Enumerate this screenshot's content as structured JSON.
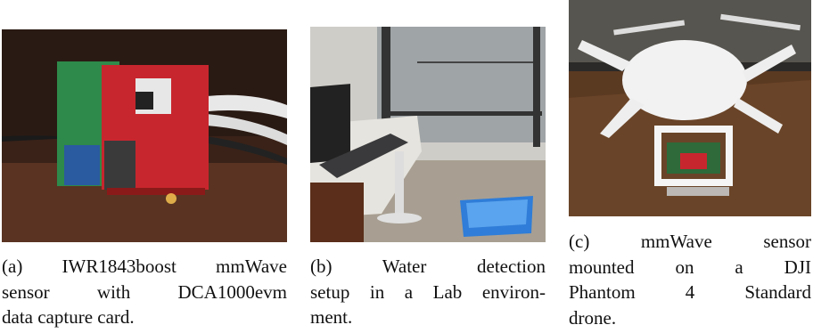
{
  "figures": [
    {
      "caption_lines": [
        "(a) IWR1843boost mmWave",
        "sensor with DCA1000evm",
        "data capture card."
      ]
    },
    {
      "caption_lines": [
        "(b) Water detection",
        "setup in a Lab environ-",
        "ment."
      ]
    },
    {
      "caption_lines": [
        "(c) mmWave sensor",
        "mounted on a DJI",
        "Phantom 4 Standard",
        "drone."
      ]
    }
  ]
}
